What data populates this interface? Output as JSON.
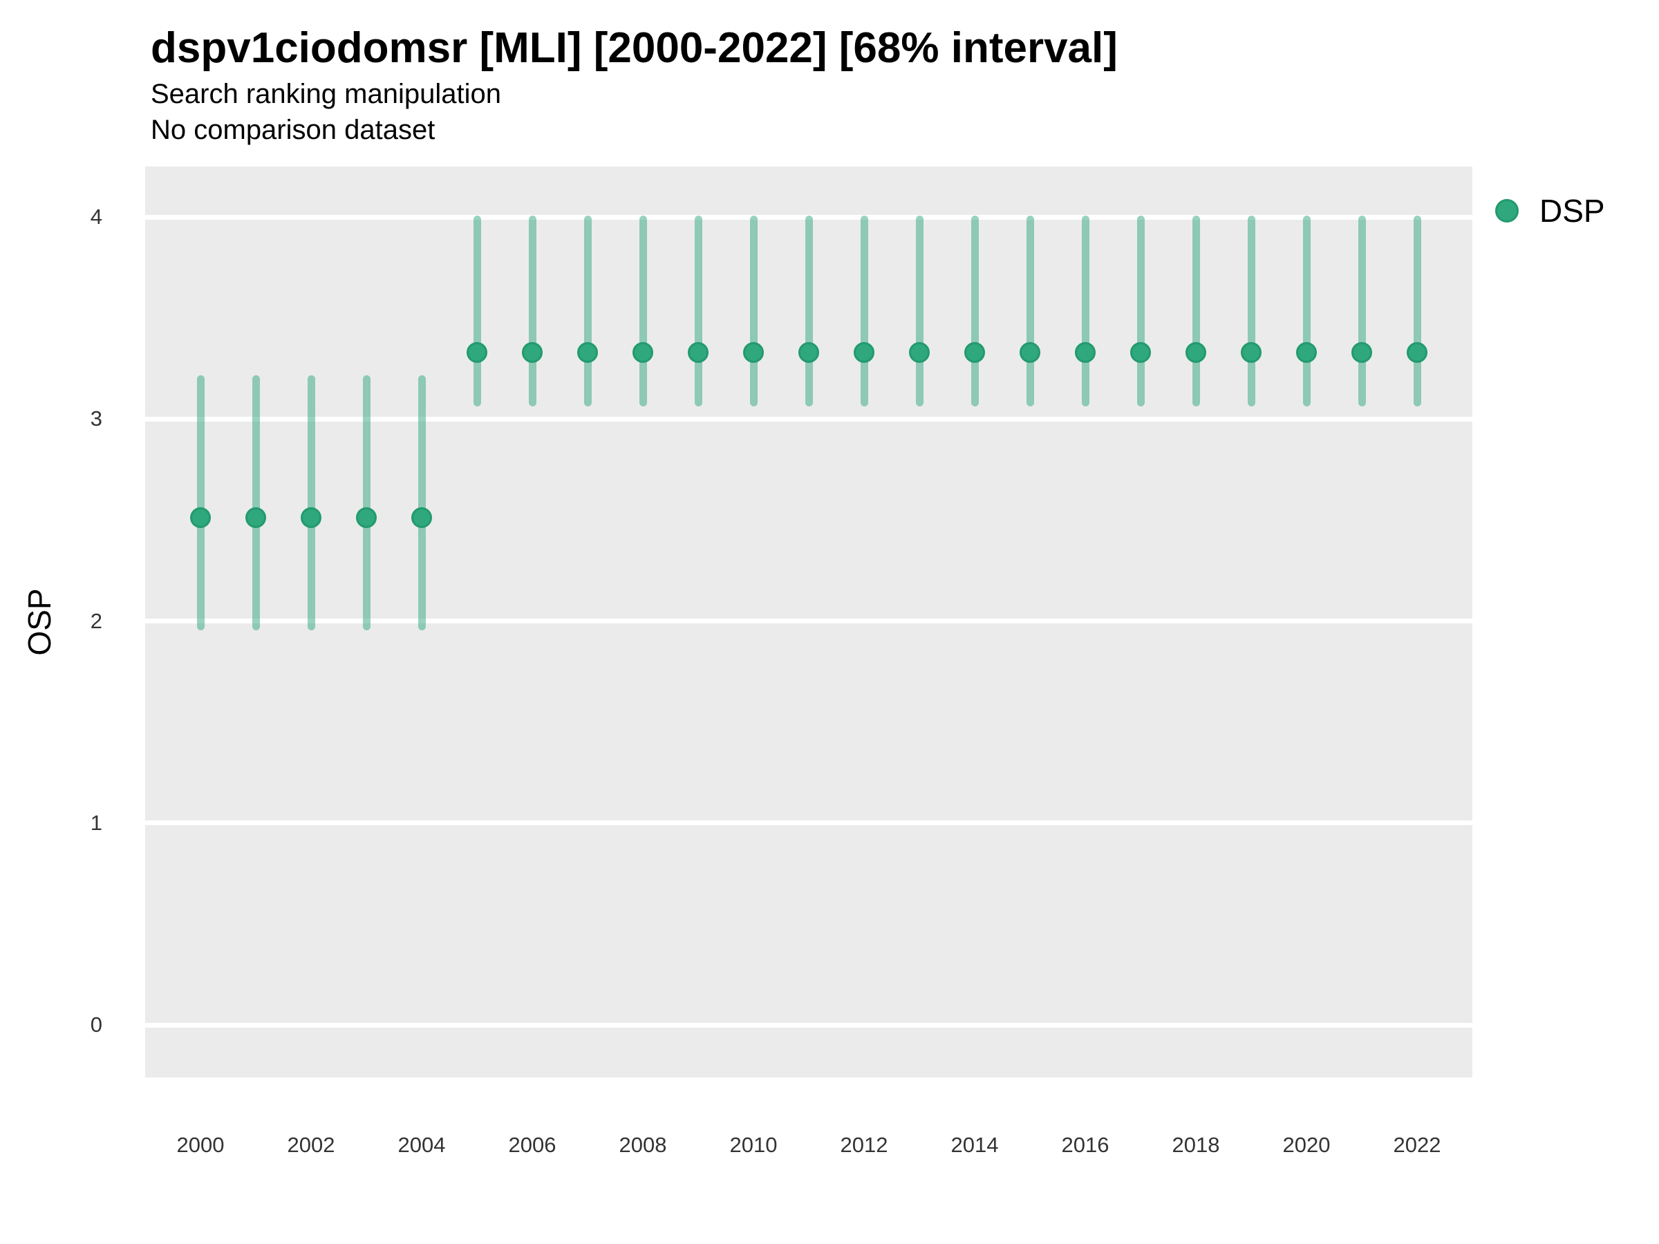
{
  "chart_data": {
    "type": "pointrange",
    "title": "dspv1ciodomsr [MLI] [2000-2022] [68% interval]",
    "subtitle": "Search ranking manipulation",
    "note": "No comparison dataset",
    "xlabel": "",
    "ylabel": "OSP",
    "interval": "68%",
    "x_domain": [
      1999,
      2023
    ],
    "y_domain": [
      -0.26,
      4.25
    ],
    "x_tick_years": [
      2000,
      2002,
      2004,
      2006,
      2008,
      2010,
      2012,
      2014,
      2016,
      2018,
      2020,
      2022
    ],
    "y_ticks": [
      0,
      1,
      2,
      3,
      4
    ],
    "grid": "horizontal-major-only",
    "legend": {
      "position": "right-top",
      "entries": [
        {
          "label": "DSP",
          "marker": "circle"
        }
      ]
    },
    "colors": {
      "point_fill": "#2FA87D",
      "point_stroke": "#239A6E",
      "range_line": "rgba(47,168,125,0.5)",
      "panel_bg": "#EBEBEB",
      "gridline": "#FFFFFF",
      "tick_text": "#333333"
    },
    "series": [
      {
        "name": "DSP",
        "points": [
          {
            "year": 2000,
            "value": 2.51,
            "lower": 1.97,
            "upper": 3.2
          },
          {
            "year": 2001,
            "value": 2.51,
            "lower": 1.97,
            "upper": 3.2
          },
          {
            "year": 2002,
            "value": 2.51,
            "lower": 1.97,
            "upper": 3.2
          },
          {
            "year": 2003,
            "value": 2.51,
            "lower": 1.97,
            "upper": 3.2
          },
          {
            "year": 2004,
            "value": 2.51,
            "lower": 1.97,
            "upper": 3.2
          },
          {
            "year": 2005,
            "value": 3.33,
            "lower": 3.08,
            "upper": 3.99
          },
          {
            "year": 2006,
            "value": 3.33,
            "lower": 3.08,
            "upper": 3.99
          },
          {
            "year": 2007,
            "value": 3.33,
            "lower": 3.08,
            "upper": 3.99
          },
          {
            "year": 2008,
            "value": 3.33,
            "lower": 3.08,
            "upper": 3.99
          },
          {
            "year": 2009,
            "value": 3.33,
            "lower": 3.08,
            "upper": 3.99
          },
          {
            "year": 2010,
            "value": 3.33,
            "lower": 3.08,
            "upper": 3.99
          },
          {
            "year": 2011,
            "value": 3.33,
            "lower": 3.08,
            "upper": 3.99
          },
          {
            "year": 2012,
            "value": 3.33,
            "lower": 3.08,
            "upper": 3.99
          },
          {
            "year": 2013,
            "value": 3.33,
            "lower": 3.08,
            "upper": 3.99
          },
          {
            "year": 2014,
            "value": 3.33,
            "lower": 3.08,
            "upper": 3.99
          },
          {
            "year": 2015,
            "value": 3.33,
            "lower": 3.08,
            "upper": 3.99
          },
          {
            "year": 2016,
            "value": 3.33,
            "lower": 3.08,
            "upper": 3.99
          },
          {
            "year": 2017,
            "value": 3.33,
            "lower": 3.08,
            "upper": 3.99
          },
          {
            "year": 2018,
            "value": 3.33,
            "lower": 3.08,
            "upper": 3.99
          },
          {
            "year": 2019,
            "value": 3.33,
            "lower": 3.08,
            "upper": 3.99
          },
          {
            "year": 2020,
            "value": 3.33,
            "lower": 3.08,
            "upper": 3.99
          },
          {
            "year": 2021,
            "value": 3.33,
            "lower": 3.08,
            "upper": 3.99
          },
          {
            "year": 2022,
            "value": 3.33,
            "lower": 3.08,
            "upper": 3.99
          }
        ]
      }
    ]
  }
}
